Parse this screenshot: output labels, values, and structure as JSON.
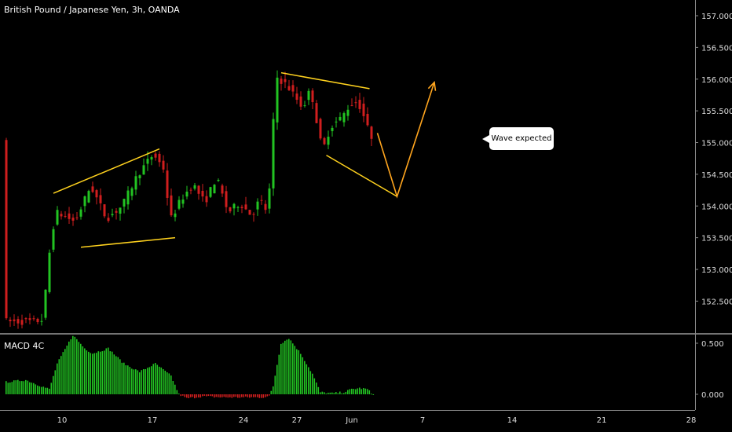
{
  "chart_title": "British Pound / Japanese Yen, 3h, OANDA",
  "indicator_label": "MACD 4C",
  "callout_text": "Wave expected",
  "colors": {
    "background": "#000000",
    "up_candle": "#22c322",
    "down_candle": "#d01e1e",
    "trendline": "#ffd21e",
    "projection": "#ffa51e",
    "axis_text": "#dddddd",
    "separator": "#e6e6e6"
  },
  "chart_data": [
    {
      "type": "candlestick",
      "title": "British Pound / Japanese Yen, 3h, OANDA",
      "ylim": [
        152.1,
        157.15
      ],
      "y_ticks": [
        "157.000",
        "156.500",
        "156.000",
        "155.500",
        "155.000",
        "154.500",
        "154.000",
        "153.500",
        "153.000",
        "152.500"
      ],
      "x_ticks": [
        "10",
        "17",
        "24",
        "27",
        "Jun",
        "7",
        "14",
        "21",
        "28"
      ],
      "price_path": [
        [
          0,
          152.18
        ],
        [
          8,
          152.18
        ],
        [
          10,
          152.22
        ],
        [
          11,
          153.05
        ],
        [
          13,
          153.9
        ],
        [
          15,
          153.85
        ],
        [
          18,
          153.75
        ],
        [
          22,
          154.32
        ],
        [
          26,
          153.8
        ],
        [
          30,
          154.0
        ],
        [
          34,
          154.5
        ],
        [
          38,
          154.82
        ],
        [
          41,
          154.55
        ],
        [
          42,
          153.75
        ],
        [
          45,
          154.1
        ],
        [
          48,
          154.35
        ],
        [
          51,
          154.05
        ],
        [
          54,
          154.45
        ],
        [
          57,
          153.9
        ],
        [
          60,
          154.05
        ],
        [
          63,
          153.85
        ],
        [
          65,
          154.1
        ],
        [
          67,
          153.9
        ],
        [
          68,
          154.6
        ],
        [
          69,
          156.05
        ],
        [
          72,
          155.9
        ],
        [
          76,
          155.55
        ],
        [
          78,
          155.85
        ],
        [
          81,
          154.85
        ],
        [
          83,
          155.25
        ],
        [
          86,
          155.4
        ],
        [
          88,
          155.6
        ],
        [
          90,
          155.65
        ],
        [
          92,
          155.35
        ],
        [
          93,
          155.1
        ]
      ],
      "trendlines": [
        {
          "from": [
            12,
            154.2
          ],
          "to": [
            39,
            154.9
          ]
        },
        {
          "from": [
            19,
            153.35
          ],
          "to": [
            43,
            153.5
          ]
        },
        {
          "from": [
            70,
            156.1
          ],
          "to": [
            92.5,
            155.85
          ]
        },
        {
          "from": [
            81.5,
            154.8
          ],
          "to": [
            99.5,
            154.15
          ]
        }
      ],
      "projection": [
        [
          94.5,
          155.15
        ],
        [
          99.5,
          154.15
        ],
        [
          109,
          155.95
        ]
      ],
      "callout": "Wave expected"
    },
    {
      "type": "bar",
      "title": "MACD 4C",
      "ylim": [
        -0.2,
        0.62
      ],
      "y_ticks": [
        "0.500",
        "0.000"
      ],
      "values_path": [
        [
          0,
          0.12
        ],
        [
          5,
          0.14
        ],
        [
          9,
          0.08
        ],
        [
          11,
          0.05
        ],
        [
          13,
          0.3
        ],
        [
          17,
          0.58
        ],
        [
          20,
          0.45
        ],
        [
          22,
          0.4
        ],
        [
          26,
          0.45
        ],
        [
          30,
          0.3
        ],
        [
          34,
          0.22
        ],
        [
          38,
          0.3
        ],
        [
          42,
          0.18
        ],
        [
          44,
          0.0
        ],
        [
          46,
          -0.04
        ],
        [
          50,
          -0.02
        ],
        [
          55,
          -0.03
        ],
        [
          60,
          -0.03
        ],
        [
          65,
          -0.03
        ],
        [
          67,
          -0.02
        ],
        [
          68,
          0.08
        ],
        [
          70,
          0.5
        ],
        [
          72,
          0.55
        ],
        [
          75,
          0.4
        ],
        [
          78,
          0.2
        ],
        [
          80,
          0.02
        ],
        [
          83,
          0.01
        ],
        [
          86,
          0.02
        ],
        [
          88,
          0.05
        ],
        [
          90,
          0.06
        ],
        [
          92,
          0.05
        ],
        [
          93,
          0.01
        ]
      ]
    }
  ]
}
